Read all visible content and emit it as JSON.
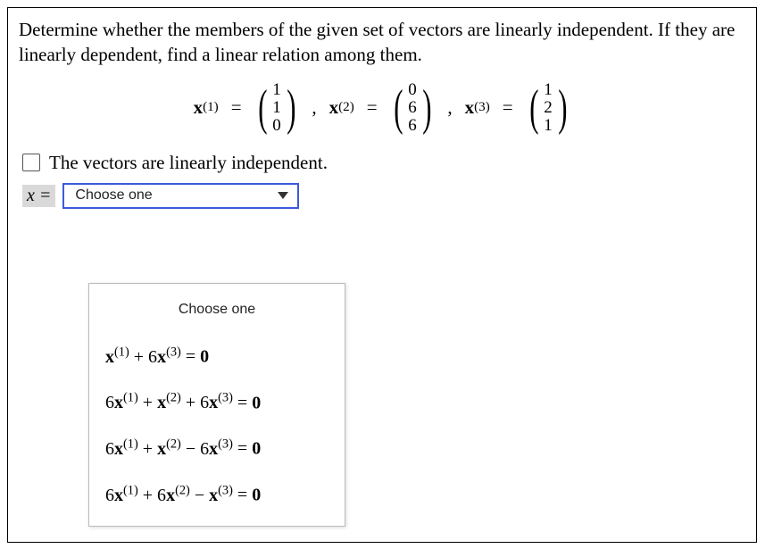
{
  "prompt": "Determine whether the members of the given set of vectors are linearly independent. If they are linearly dependent, find a linear relation among them.",
  "vectors": {
    "v1": {
      "name_base": "x",
      "name_sup": "(1)",
      "entries": [
        "1",
        "1",
        "0"
      ]
    },
    "v2": {
      "name_base": "x",
      "name_sup": "(2)",
      "entries": [
        "0",
        "6",
        "6"
      ]
    },
    "v3": {
      "name_base": "x",
      "name_sup": "(3)",
      "entries": [
        "1",
        "2",
        "1"
      ]
    }
  },
  "checkbox_label": "The vectors are linearly independent.",
  "xeq_label_x": "x",
  "xeq_label_eq": " = ",
  "select_placeholder": "Choose one",
  "dropdown": {
    "header": "Choose one",
    "options": [
      {
        "terms": [
          {
            "coef": "",
            "base": "x",
            "sup": "(1)"
          },
          {
            "coef": " + 6",
            "base": "x",
            "sup": "(3)"
          }
        ],
        "rhs": " = 0"
      },
      {
        "terms": [
          {
            "coef": "6",
            "base": "x",
            "sup": "(1)"
          },
          {
            "coef": " + ",
            "base": "x",
            "sup": "(2)"
          },
          {
            "coef": " + 6",
            "base": "x",
            "sup": "(3)"
          }
        ],
        "rhs": " = 0"
      },
      {
        "terms": [
          {
            "coef": "6",
            "base": "x",
            "sup": "(1)"
          },
          {
            "coef": " + ",
            "base": "x",
            "sup": "(2)"
          },
          {
            "coef": " − 6",
            "base": "x",
            "sup": "(3)"
          }
        ],
        "rhs": " = 0"
      },
      {
        "terms": [
          {
            "coef": "6",
            "base": "x",
            "sup": "(1)"
          },
          {
            "coef": " + 6",
            "base": "x",
            "sup": "(2)"
          },
          {
            "coef": " − ",
            "base": "x",
            "sup": "(3)"
          }
        ],
        "rhs": " = 0"
      }
    ]
  },
  "colors": {
    "select_border": "#3b5bdb",
    "xeq_bg": "#d9d9d9"
  }
}
